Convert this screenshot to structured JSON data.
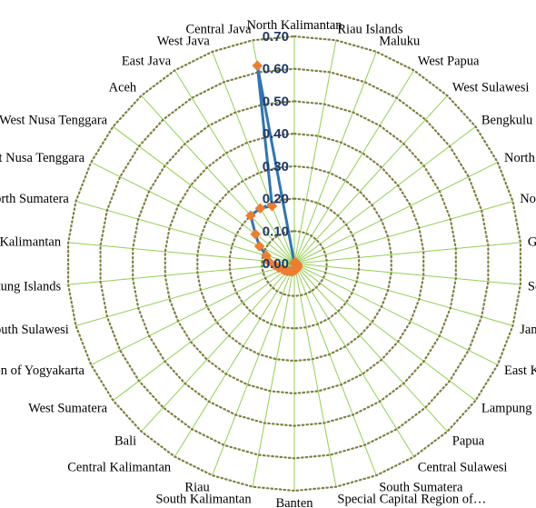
{
  "chart_data": {
    "type": "radar",
    "title": "",
    "categories": [
      "North Kalimantan",
      "Riau Islands",
      "Maluku",
      "West Papua",
      "West Sulawesi",
      "Bengkulu",
      "North Maluku",
      "North Sulawesi",
      "Gorontalo",
      "Southeast Sulawesi",
      "Jambi",
      "East Kalimantan",
      "Lampung",
      "Papua",
      "Central Sulawesi",
      "South Sumatera",
      "Special Capital Region of…",
      "Banten",
      "South Kalimantan",
      "Riau",
      "Central Kalimantan",
      "Bali",
      "West Sumatera",
      "Special Region of Yogyakarta",
      "South Sulawesi",
      "Bangka Belitung Islands",
      "West Kalimantan",
      "North Sumatera",
      "East Nusa Tenggara",
      "West Nusa Tenggara",
      "Aceh",
      "East Java",
      "West Java",
      "Central Java"
    ],
    "series": [
      {
        "values": [
          0.002,
          0.002,
          0.003,
          0.003,
          0.003,
          0.004,
          0.005,
          0.005,
          0.006,
          0.007,
          0.008,
          0.01,
          0.012,
          0.014,
          0.016,
          0.018,
          0.02,
          0.022,
          0.024,
          0.026,
          0.028,
          0.032,
          0.036,
          0.04,
          0.05,
          0.06,
          0.08,
          0.09,
          0.12,
          0.15,
          0.2,
          0.2,
          0.19,
          0.62
        ]
      }
    ],
    "radial_axis": {
      "min": 0,
      "max": 0.7,
      "step": 0.1,
      "tick_labels": [
        "0.00",
        "0.10",
        "0.20",
        "0.30",
        "0.40",
        "0.50",
        "0.60",
        "0.70"
      ]
    },
    "grid": true,
    "legend": "none",
    "colors": {
      "line": "#2e75b6",
      "marker": "#ed7d31",
      "spoke": "#92d050",
      "ring": "#7f7f3f",
      "tick_label": "#1f3864"
    }
  }
}
